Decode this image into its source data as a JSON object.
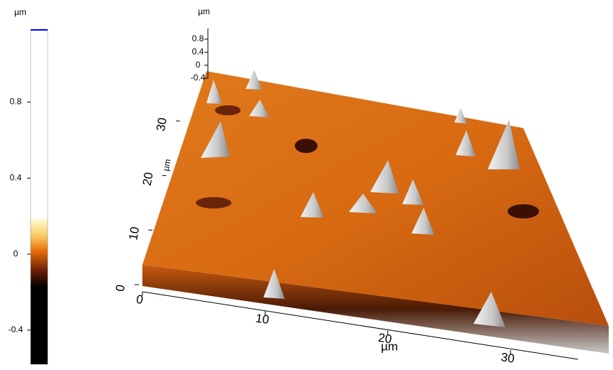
{
  "colorbar": {
    "unit": "µm",
    "lim": [
      -0.58,
      1.18
    ],
    "ticks": [
      0.8,
      0.4,
      0,
      -0.4
    ]
  },
  "z_axis": {
    "unit": "µm",
    "ticks": [
      0.8,
      0.4,
      0,
      -0.4
    ]
  },
  "x_axis": {
    "unit": "µm",
    "ticks": [
      0,
      10,
      20,
      30
    ]
  },
  "y_axis": {
    "unit": "µm",
    "ticks": [
      0,
      10,
      20,
      30
    ]
  }
}
